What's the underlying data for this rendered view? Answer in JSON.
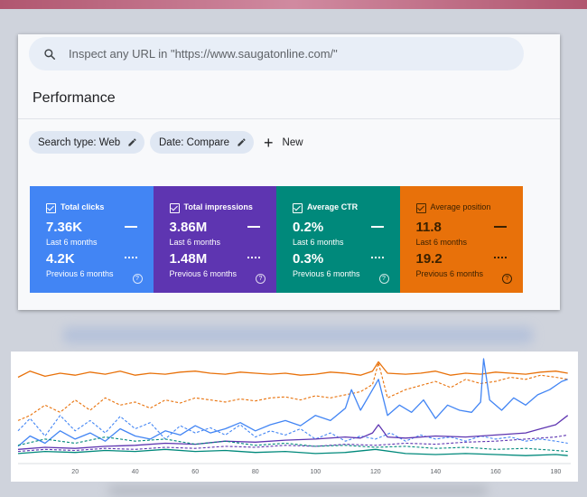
{
  "search": {
    "placeholder": "Inspect any URL in \"https://www.saugatonline.com/\""
  },
  "page": {
    "title": "Performance"
  },
  "filters": [
    {
      "label": "Search type: Web"
    },
    {
      "label": "Date: Compare"
    }
  ],
  "new_button": {
    "label": "New"
  },
  "metrics": [
    {
      "label": "Total clicks",
      "current": "7.36K",
      "current_period": "Last 6 months",
      "previous": "4.2K",
      "previous_period": "Previous 6 months",
      "color": "#4285f4"
    },
    {
      "label": "Total impressions",
      "current": "3.86M",
      "current_period": "Last 6 months",
      "previous": "1.48M",
      "previous_period": "Previous 6 months",
      "color": "#5e35b1"
    },
    {
      "label": "Average CTR",
      "current": "0.2%",
      "current_period": "Last 6 months",
      "previous": "0.3%",
      "previous_period": "Previous 6 months",
      "color": "#00897b"
    },
    {
      "label": "Average position",
      "current": "11.8",
      "current_period": "Last 6 months",
      "previous": "19.2",
      "previous_period": "Previous 6 months",
      "color": "#e8710a"
    }
  ],
  "chart_data": {
    "type": "line",
    "x_ticks": [
      20,
      40,
      60,
      80,
      100,
      120,
      140,
      160,
      180
    ],
    "xlim": [
      1,
      185
    ],
    "grid": false,
    "series": [
      {
        "key": "position_current",
        "style": "solid",
        "color": "#e8710a",
        "x": [
          1,
          5,
          10,
          15,
          20,
          25,
          30,
          35,
          40,
          45,
          50,
          55,
          60,
          65,
          70,
          75,
          80,
          85,
          90,
          95,
          100,
          105,
          110,
          115,
          119,
          121,
          124,
          130,
          135,
          140,
          145,
          150,
          155,
          160,
          165,
          170,
          175,
          180,
          184
        ],
        "y": [
          0.82,
          0.88,
          0.83,
          0.86,
          0.84,
          0.87,
          0.85,
          0.88,
          0.84,
          0.86,
          0.85,
          0.87,
          0.88,
          0.86,
          0.85,
          0.87,
          0.86,
          0.85,
          0.86,
          0.84,
          0.85,
          0.87,
          0.86,
          0.84,
          0.88,
          0.97,
          0.86,
          0.85,
          0.86,
          0.88,
          0.84,
          0.86,
          0.85,
          0.87,
          0.86,
          0.85,
          0.87,
          0.88,
          0.86
        ]
      },
      {
        "key": "position_previous",
        "style": "dashed",
        "color": "#e8710a",
        "x": [
          1,
          5,
          10,
          15,
          20,
          25,
          30,
          35,
          40,
          45,
          50,
          55,
          60,
          65,
          70,
          75,
          80,
          85,
          90,
          95,
          100,
          105,
          110,
          115,
          119,
          121,
          124,
          130,
          135,
          140,
          145,
          150,
          155,
          160,
          165,
          170,
          175,
          180,
          184
        ],
        "y": [
          0.4,
          0.45,
          0.55,
          0.48,
          0.6,
          0.5,
          0.62,
          0.55,
          0.58,
          0.52,
          0.6,
          0.57,
          0.62,
          0.6,
          0.58,
          0.61,
          0.59,
          0.62,
          0.63,
          0.6,
          0.64,
          0.62,
          0.65,
          0.68,
          0.75,
          0.96,
          0.62,
          0.7,
          0.74,
          0.78,
          0.72,
          0.8,
          0.76,
          0.78,
          0.82,
          0.8,
          0.84,
          0.82,
          0.8
        ]
      },
      {
        "key": "clicks_current",
        "style": "solid",
        "color": "#4285f4",
        "x": [
          1,
          5,
          10,
          15,
          20,
          25,
          30,
          35,
          40,
          45,
          50,
          55,
          60,
          65,
          70,
          75,
          80,
          85,
          90,
          95,
          100,
          105,
          110,
          112,
          115,
          118,
          121,
          124,
          128,
          132,
          136,
          140,
          144,
          148,
          152,
          155,
          156,
          158,
          162,
          166,
          170,
          174,
          178,
          182,
          184
        ],
        "y": [
          0.15,
          0.25,
          0.18,
          0.3,
          0.22,
          0.28,
          0.2,
          0.32,
          0.25,
          0.22,
          0.3,
          0.26,
          0.35,
          0.28,
          0.32,
          0.38,
          0.3,
          0.36,
          0.4,
          0.35,
          0.45,
          0.4,
          0.52,
          0.7,
          0.5,
          0.65,
          0.8,
          0.45,
          0.55,
          0.48,
          0.6,
          0.42,
          0.55,
          0.5,
          0.48,
          0.58,
          1.0,
          0.6,
          0.5,
          0.62,
          0.55,
          0.65,
          0.7,
          0.78,
          0.8
        ]
      },
      {
        "key": "clicks_previous",
        "style": "dashed",
        "color": "#4285f4",
        "x": [
          1,
          5,
          10,
          15,
          20,
          25,
          30,
          35,
          40,
          45,
          50,
          55,
          60,
          65,
          70,
          75,
          80,
          85,
          90,
          95,
          100,
          105,
          110,
          115,
          120,
          125,
          130,
          135,
          140,
          145,
          150,
          155,
          160,
          165,
          170,
          175,
          180,
          184
        ],
        "y": [
          0.3,
          0.42,
          0.25,
          0.45,
          0.3,
          0.4,
          0.28,
          0.44,
          0.32,
          0.38,
          0.22,
          0.35,
          0.28,
          0.33,
          0.26,
          0.36,
          0.24,
          0.3,
          0.26,
          0.32,
          0.22,
          0.28,
          0.2,
          0.25,
          0.22,
          0.28,
          0.2,
          0.26,
          0.22,
          0.24,
          0.2,
          0.25,
          0.22,
          0.24,
          0.2,
          0.22,
          0.2,
          0.18
        ]
      },
      {
        "key": "impressions_current",
        "style": "solid",
        "color": "#5e35b1",
        "x": [
          1,
          10,
          20,
          30,
          40,
          50,
          60,
          70,
          80,
          90,
          100,
          110,
          115,
          119,
          121,
          124,
          130,
          140,
          150,
          160,
          170,
          175,
          180,
          184
        ],
        "y": [
          0.12,
          0.14,
          0.13,
          0.15,
          0.16,
          0.18,
          0.17,
          0.2,
          0.19,
          0.21,
          0.22,
          0.24,
          0.23,
          0.28,
          0.36,
          0.24,
          0.23,
          0.25,
          0.24,
          0.26,
          0.28,
          0.32,
          0.36,
          0.45
        ]
      },
      {
        "key": "impressions_previous",
        "style": "dashed",
        "color": "#5e35b1",
        "x": [
          1,
          10,
          20,
          30,
          40,
          50,
          60,
          70,
          80,
          90,
          100,
          110,
          120,
          130,
          140,
          150,
          160,
          170,
          180,
          184
        ],
        "y": [
          0.1,
          0.12,
          0.11,
          0.13,
          0.12,
          0.14,
          0.13,
          0.15,
          0.14,
          0.16,
          0.15,
          0.17,
          0.16,
          0.18,
          0.17,
          0.19,
          0.2,
          0.22,
          0.24,
          0.26
        ]
      },
      {
        "key": "ctr_current",
        "style": "solid",
        "color": "#00897b",
        "x": [
          1,
          10,
          20,
          30,
          40,
          50,
          60,
          70,
          80,
          90,
          100,
          110,
          120,
          130,
          140,
          150,
          160,
          170,
          180,
          184
        ],
        "y": [
          0.08,
          0.1,
          0.09,
          0.11,
          0.1,
          0.12,
          0.1,
          0.11,
          0.09,
          0.1,
          0.08,
          0.09,
          0.12,
          0.08,
          0.07,
          0.08,
          0.07,
          0.06,
          0.07,
          0.06
        ]
      },
      {
        "key": "ctr_previous",
        "style": "dashed",
        "color": "#00897b",
        "x": [
          1,
          10,
          20,
          30,
          40,
          50,
          60,
          70,
          80,
          90,
          100,
          110,
          120,
          130,
          140,
          150,
          160,
          170,
          180,
          184
        ],
        "y": [
          0.16,
          0.22,
          0.18,
          0.24,
          0.2,
          0.22,
          0.17,
          0.2,
          0.16,
          0.18,
          0.15,
          0.16,
          0.14,
          0.15,
          0.13,
          0.14,
          0.12,
          0.13,
          0.11,
          0.1
        ]
      }
    ]
  }
}
